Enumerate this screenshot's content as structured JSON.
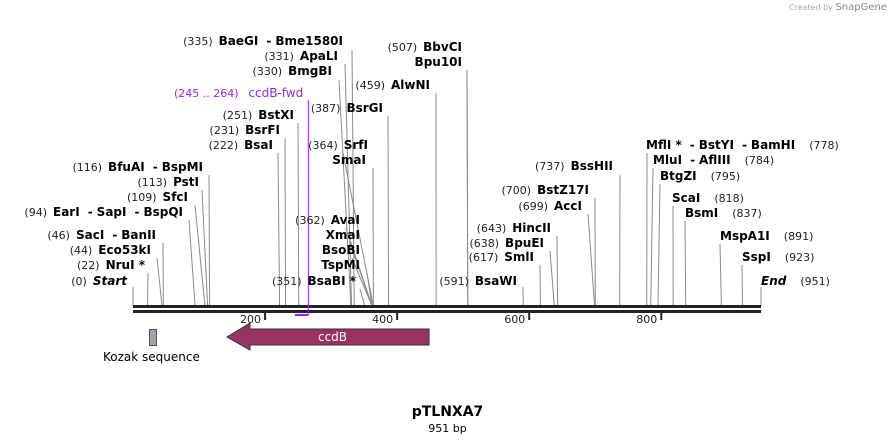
{
  "credit": {
    "prefix": "Created by",
    "brand": "SnapGene"
  },
  "plasmid": {
    "name": "pTLNXA7",
    "length_label": "951 bp",
    "length_bp": 951
  },
  "ruler": {
    "ticks": [
      200,
      400,
      600,
      800
    ]
  },
  "primer": {
    "range_text": "(245 .. 264)",
    "name": "ccdB-fwd",
    "start": 245,
    "end": 264,
    "color": "#a020f0"
  },
  "features": {
    "kozak": {
      "name": "Kozak sequence",
      "color": "#9da5ae"
    },
    "ccdB": {
      "name": "ccdB",
      "direction": "reverse",
      "color": "#993366"
    }
  },
  "sites": [
    {
      "pos": 335,
      "pos_text": "(335)",
      "names": [
        "BaeGI",
        "Bme1580I"
      ]
    },
    {
      "pos": 331,
      "pos_text": "(331)",
      "names": [
        "ApaLI"
      ]
    },
    {
      "pos": 330,
      "pos_text": "(330)",
      "names": [
        "BmgBI"
      ]
    },
    {
      "pos": 387,
      "pos_text": "(387)",
      "names": [
        "BsrGI"
      ]
    },
    {
      "pos": 251,
      "pos_text": "(251)",
      "names": [
        "BstXI"
      ]
    },
    {
      "pos": 231,
      "pos_text": "(231)",
      "names": [
        "BsrFI"
      ]
    },
    {
      "pos": 222,
      "pos_text": "(222)",
      "names": [
        "BsaI"
      ]
    },
    {
      "pos": 364,
      "pos_text": "(364)",
      "names": [
        "SrfI"
      ]
    },
    {
      "pos": 364,
      "pos_text": "",
      "names": [
        "SmaI"
      ]
    },
    {
      "pos": 116,
      "pos_text": "(116)",
      "names": [
        "BfuAI",
        "BspMI"
      ]
    },
    {
      "pos": 113,
      "pos_text": "(113)",
      "names": [
        "PstI"
      ]
    },
    {
      "pos": 109,
      "pos_text": "(109)",
      "names": [
        "SfcI"
      ]
    },
    {
      "pos": 94,
      "pos_text": "(94)",
      "names": [
        "EarI",
        "SapI",
        "BspQI"
      ]
    },
    {
      "pos": 362,
      "pos_text": "(362)",
      "names": [
        "AvaI"
      ]
    },
    {
      "pos": 362,
      "pos_text": "",
      "names": [
        "XmaI"
      ]
    },
    {
      "pos": 362,
      "pos_text": "",
      "names": [
        "BsoBI"
      ]
    },
    {
      "pos": 362,
      "pos_text": "",
      "names": [
        "TspMI"
      ]
    },
    {
      "pos": 351,
      "pos_text": "(351)",
      "names": [
        "BsaBI *"
      ]
    },
    {
      "pos": 46,
      "pos_text": "(46)",
      "names": [
        "SacI",
        "BanII"
      ]
    },
    {
      "pos": 44,
      "pos_text": "(44)",
      "names": [
        "Eco53kI"
      ]
    },
    {
      "pos": 22,
      "pos_text": "(22)",
      "names": [
        "NruI *"
      ]
    },
    {
      "pos": 0,
      "pos_text": "(0)",
      "names": [
        "Start"
      ],
      "italic": true
    },
    {
      "pos": 507,
      "pos_text": "(507)",
      "names": [
        "BbvCI"
      ]
    },
    {
      "pos": 507,
      "pos_text": "",
      "names": [
        "Bpu10I"
      ]
    },
    {
      "pos": 459,
      "pos_text": "(459)",
      "names": [
        "AlwNI"
      ]
    },
    {
      "pos": 591,
      "pos_text": "(591)",
      "names": [
        "BsaWI"
      ]
    },
    {
      "pos": 737,
      "pos_text": "(737)",
      "names": [
        "BssHII"
      ]
    },
    {
      "pos": 700,
      "pos_text": "(700)",
      "names": [
        "BstZ17I"
      ]
    },
    {
      "pos": 699,
      "pos_text": "(699)",
      "names": [
        "AccI"
      ]
    },
    {
      "pos": 643,
      "pos_text": "(643)",
      "names": [
        "HincII"
      ]
    },
    {
      "pos": 638,
      "pos_text": "(638)",
      "names": [
        "BpuEI"
      ]
    },
    {
      "pos": 617,
      "pos_text": "(617)",
      "names": [
        "SmlI"
      ]
    },
    {
      "pos": 778,
      "pos_text": "(778)",
      "names": [
        "MflI *",
        "BstYI",
        "BamHI"
      ]
    },
    {
      "pos": 784,
      "pos_text": "(784)",
      "names": [
        "MluI",
        "AflIII"
      ]
    },
    {
      "pos": 795,
      "pos_text": "(795)",
      "names": [
        "BtgZI"
      ]
    },
    {
      "pos": 818,
      "pos_text": "(818)",
      "names": [
        "ScaI"
      ]
    },
    {
      "pos": 837,
      "pos_text": "(837)",
      "names": [
        "BsmI"
      ]
    },
    {
      "pos": 891,
      "pos_text": "(891)",
      "names": [
        "MspA1I"
      ]
    },
    {
      "pos": 923,
      "pos_text": "(923)",
      "names": [
        "SspI"
      ]
    },
    {
      "pos": 951,
      "pos_text": "(951)",
      "names": [
        "End"
      ],
      "italic": true
    }
  ]
}
